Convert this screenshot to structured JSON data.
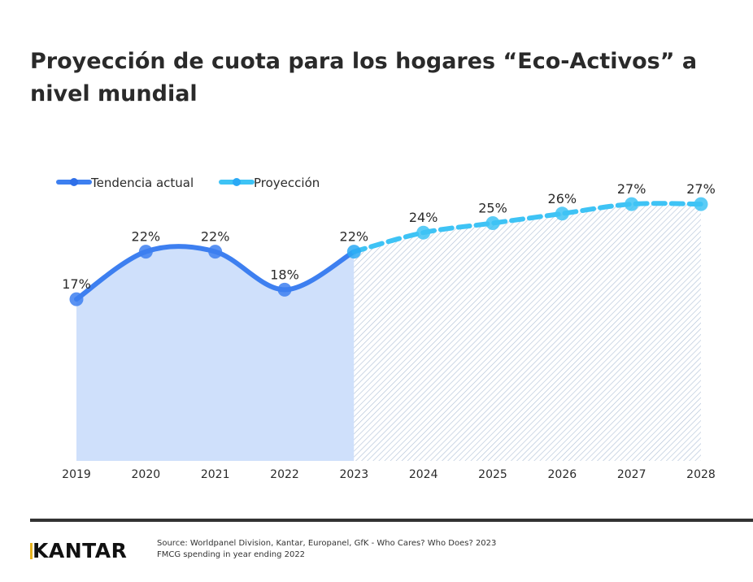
{
  "chart_data": {
    "type": "line",
    "title": "Proyección de cuota para los hogares “Eco-Activos” a nivel mundial",
    "categories": [
      "2019",
      "2020",
      "2021",
      "2022",
      "2023",
      "2024",
      "2025",
      "2026",
      "2027",
      "2028"
    ],
    "series": [
      {
        "name": "Tendencia actual",
        "values": [
          17,
          22,
          22,
          18,
          22,
          null,
          null,
          null,
          null,
          null
        ],
        "labels": [
          "17%",
          "22%",
          "22%",
          "18%",
          "22%"
        ],
        "color": "#3d7ff0",
        "style": "solid",
        "fill": "#cfe0fb"
      },
      {
        "name": "Proyección",
        "values": [
          null,
          null,
          null,
          null,
          22,
          24,
          25,
          26,
          27,
          27
        ],
        "labels": [
          "24%",
          "25%",
          "26%",
          "27%",
          "27%"
        ],
        "color": "#3ec3f5",
        "style": "dashed",
        "fill": "hatched"
      }
    ],
    "ylim": [
      0,
      30
    ],
    "grid": false,
    "legend": "top-left"
  },
  "footer": {
    "logo": "KANTAR",
    "source_line1": "Source: Worldpanel Division, Kantar, Europanel, GfK - Who Cares? Who Does? 2023",
    "source_line2": "FMCG spending in year ending 2022"
  }
}
